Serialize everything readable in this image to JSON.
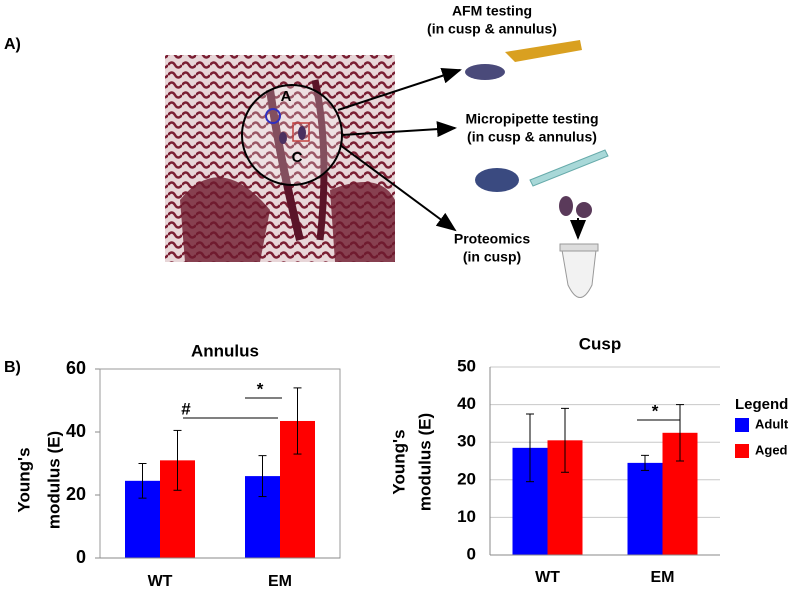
{
  "figure": {
    "panel_a": {
      "label": "A)",
      "image_labels": [
        "A",
        "C"
      ],
      "steps": [
        [
          "AFM testing",
          "(in cusp & annulus)"
        ],
        [
          "Micropipette testing",
          "(in cusp & annulus)"
        ],
        [
          "Proteomics",
          "(in cusp)"
        ]
      ]
    },
    "panel_b_label": "B)"
  },
  "chart_data": [
    {
      "type": "bar",
      "title": "Annulus",
      "ylabel": [
        "Young's",
        "modulus (E)"
      ],
      "categories": [
        "WT",
        "EM"
      ],
      "series": [
        {
          "name": "Adult",
          "color": "#0000ff",
          "values": [
            24.5,
            26
          ],
          "errors": [
            5.5,
            6.5
          ]
        },
        {
          "name": "Aged",
          "color": "#ff0000",
          "values": [
            31,
            43.5
          ],
          "errors": [
            9.5,
            10.5
          ]
        }
      ],
      "ylim": [
        0,
        60
      ],
      "yticks": [
        0,
        20,
        40,
        60
      ],
      "grid": false,
      "legend": false,
      "annotations": [
        "#",
        "*"
      ]
    },
    {
      "type": "bar",
      "title": "Cusp",
      "ylabel": [
        "Young's",
        "modulus (E)"
      ],
      "categories": [
        "WT",
        "EM"
      ],
      "series": [
        {
          "name": "Adult",
          "color": "#0000ff",
          "values": [
            28.5,
            24.5
          ],
          "errors": [
            9,
            2
          ]
        },
        {
          "name": "Aged",
          "color": "#ff0000",
          "values": [
            30.5,
            32.5
          ],
          "errors": [
            8.5,
            7.5
          ]
        }
      ],
      "ylim": [
        0,
        50
      ],
      "yticks": [
        0,
        10,
        20,
        30,
        40,
        50
      ],
      "grid": true,
      "legend": true,
      "legend_title": "Legend",
      "annotations": [
        "*"
      ]
    }
  ]
}
